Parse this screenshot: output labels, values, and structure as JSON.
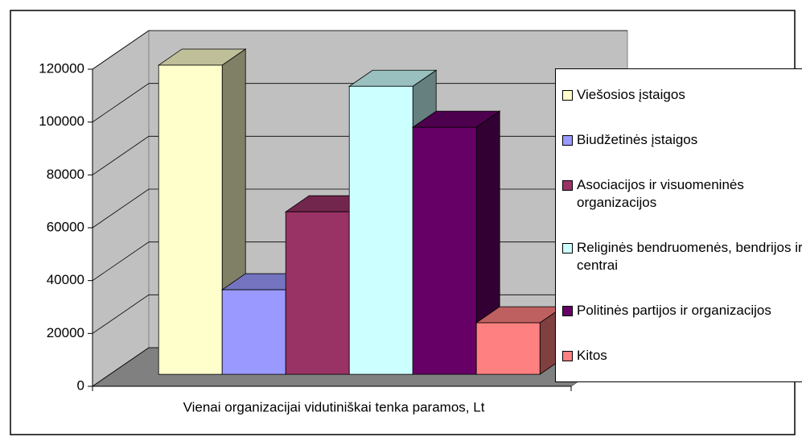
{
  "chart_data": {
    "type": "bar3d",
    "categories": [
      "Vienai organizacijai vidutiniškai tenka paramos, Lt"
    ],
    "series": [
      {
        "name": "Viešosios įstaigos",
        "color": "#FFFFCC",
        "values": [
          117000
        ]
      },
      {
        "name": "Biudžetinės įstaigos",
        "color": "#9999FF",
        "values": [
          32000
        ]
      },
      {
        "name": "Asociacijos ir visuomeninės organizacijos",
        "color": "#993366",
        "values": [
          61500
        ]
      },
      {
        "name": "Religinės bendruomenės, bendrijos ir centrai",
        "color": "#CCFFFF",
        "values": [
          109000
        ]
      },
      {
        "name": "Politinės partijos ir organizacijos",
        "color": "#660066",
        "values": [
          93500
        ]
      },
      {
        "name": "Kitos",
        "color": "#FF8080",
        "values": [
          19500
        ]
      }
    ],
    "ylim": [
      0,
      120000
    ],
    "yticks": [
      0,
      20000,
      40000,
      60000,
      80000,
      100000,
      120000
    ],
    "grid": true,
    "legend": "right"
  }
}
